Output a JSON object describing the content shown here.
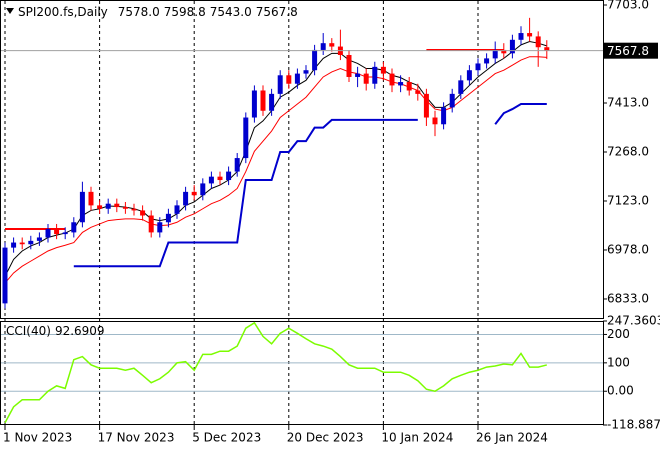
{
  "chart_data": [
    {
      "type": "candlestick",
      "title": "SPI200.fs,Daily",
      "ohlc_labels": [
        "7578.0",
        "7598.8",
        "7543.0",
        "7567.8"
      ],
      "categories": [
        "1 Nov 2023",
        null,
        null,
        null,
        null,
        null,
        null,
        null,
        null,
        null,
        null,
        "17 Nov 2023",
        null,
        null,
        null,
        null,
        null,
        null,
        null,
        null,
        null,
        null,
        "5 Dec 2023",
        null,
        null,
        null,
        null,
        null,
        null,
        null,
        null,
        null,
        null,
        "20 Dec 2023",
        null,
        null,
        null,
        null,
        null,
        null,
        null,
        null,
        null,
        null,
        "10 Jan 2024",
        null,
        null,
        null,
        null,
        null,
        null,
        null,
        null,
        null,
        null,
        "26 Jan 2024",
        null,
        null,
        null,
        null,
        null,
        null,
        null,
        null
      ],
      "open": [
        6820,
        6985,
        7000,
        6995,
        7005,
        7015,
        7040,
        7025,
        7030,
        7060,
        7150,
        7110,
        7100,
        7115,
        7105,
        7100,
        7095,
        7080,
        7030,
        7060,
        7085,
        7110,
        7150,
        7140,
        7175,
        7195,
        7185,
        7210,
        7250,
        7370,
        7450,
        7390,
        7440,
        7495,
        7470,
        7500,
        7510,
        7570,
        7590,
        7580,
        7555,
        7490,
        7500,
        7470,
        7520,
        7500,
        7465,
        7475,
        7450,
        7440,
        7370,
        7350,
        7400,
        7440,
        7480,
        7510,
        7530,
        7545,
        7570,
        7560,
        7600,
        7620,
        7610,
        7578
      ],
      "high": [
        7000,
        7015,
        7015,
        7020,
        7030,
        7055,
        7055,
        7045,
        7075,
        7180,
        7165,
        7125,
        7130,
        7130,
        7120,
        7115,
        7110,
        7095,
        7075,
        7100,
        7125,
        7165,
        7170,
        7190,
        7210,
        7210,
        7225,
        7265,
        7385,
        7465,
        7465,
        7455,
        7510,
        7510,
        7515,
        7525,
        7585,
        7620,
        7605,
        7630,
        7570,
        7520,
        7515,
        7535,
        7535,
        7515,
        7495,
        7490,
        7470,
        7455,
        7390,
        7415,
        7455,
        7495,
        7525,
        7545,
        7560,
        7595,
        7590,
        7615,
        7640,
        7665,
        7625,
        7598.8
      ],
      "low": [
        6805,
        6970,
        6980,
        6980,
        6990,
        7000,
        7010,
        7010,
        7015,
        7045,
        7095,
        7085,
        7085,
        7090,
        7085,
        7080,
        7065,
        7015,
        7015,
        7045,
        7070,
        7095,
        7125,
        7125,
        7160,
        7170,
        7170,
        7195,
        7235,
        7355,
        7375,
        7375,
        7425,
        7455,
        7455,
        7485,
        7495,
        7555,
        7565,
        7540,
        7475,
        7460,
        7450,
        7455,
        7480,
        7445,
        7445,
        7435,
        7420,
        7345,
        7315,
        7335,
        7385,
        7425,
        7465,
        7495,
        7515,
        7530,
        7545,
        7545,
        7585,
        7595,
        7520,
        7543
      ],
      "close": [
        6985,
        7000,
        6995,
        7005,
        7015,
        7040,
        7025,
        7030,
        7060,
        7150,
        7110,
        7100,
        7115,
        7105,
        7100,
        7095,
        7080,
        7030,
        7060,
        7085,
        7110,
        7150,
        7140,
        7175,
        7195,
        7185,
        7210,
        7250,
        7370,
        7450,
        7390,
        7440,
        7495,
        7470,
        7500,
        7510,
        7570,
        7590,
        7580,
        7555,
        7490,
        7500,
        7470,
        7520,
        7500,
        7465,
        7475,
        7450,
        7440,
        7370,
        7350,
        7400,
        7440,
        7480,
        7510,
        7530,
        7545,
        7570,
        7560,
        7600,
        7620,
        7610,
        7578,
        7567.8
      ],
      "up_color": "#0000cd",
      "down_color": "#ff0000",
      "series": [
        {
          "color": "#000000",
          "line_width": 1,
          "values": [
            6900,
            6950,
            6975,
            6990,
            7000,
            7015,
            7022,
            7028,
            7040,
            7080,
            7095,
            7100,
            7108,
            7107,
            7105,
            7100,
            7092,
            7070,
            7065,
            7070,
            7085,
            7110,
            7120,
            7140,
            7160,
            7170,
            7185,
            7210,
            7270,
            7340,
            7360,
            7390,
            7430,
            7445,
            7465,
            7480,
            7515,
            7545,
            7560,
            7560,
            7540,
            7530,
            7515,
            7515,
            7510,
            7495,
            7488,
            7475,
            7465,
            7430,
            7400,
            7400,
            7415,
            7440,
            7465,
            7490,
            7510,
            7530,
            7545,
            7565,
            7585,
            7595,
            7590,
            7582
          ]
        },
        {
          "color": "#ff0000",
          "line_width": 1,
          "values": [
            6880,
            6910,
            6930,
            6945,
            6960,
            6975,
            6985,
            6992,
            7000,
            7030,
            7045,
            7055,
            7065,
            7068,
            7070,
            7070,
            7068,
            7055,
            7050,
            7052,
            7060,
            7075,
            7085,
            7100,
            7115,
            7125,
            7140,
            7160,
            7210,
            7270,
            7300,
            7330,
            7370,
            7390,
            7410,
            7430,
            7460,
            7490,
            7505,
            7515,
            7505,
            7500,
            7490,
            7490,
            7485,
            7475,
            7470,
            7460,
            7450,
            7420,
            7395,
            7390,
            7400,
            7420,
            7440,
            7460,
            7480,
            7500,
            7510,
            7525,
            7540,
            7550,
            7550,
            7548
          ]
        },
        {
          "color": "#0000cd",
          "line_width": 2,
          "values": [
            null,
            null,
            null,
            null,
            null,
            null,
            null,
            null,
            6930,
            6930,
            6930,
            6930,
            6930,
            6930,
            6930,
            6930,
            6930,
            6930,
            6930,
            7000,
            7000,
            7000,
            7000,
            7000,
            7000,
            7000,
            7000,
            7000,
            7185,
            7185,
            7185,
            7185,
            7268,
            7268,
            7300,
            7300,
            7340,
            7340,
            7363,
            7363,
            7363,
            7363,
            7363,
            7363,
            7363,
            7363,
            7363,
            7363,
            7363,
            null,
            null,
            null,
            null,
            null,
            null,
            null,
            null,
            7350,
            7383,
            7395,
            7410,
            7410,
            7410,
            7410
          ]
        },
        {
          "color": "#ff0000",
          "line_width": 2,
          "values": [
            7040,
            7040,
            7040,
            7040,
            7040,
            7040,
            7040,
            7040,
            null,
            null,
            null,
            null,
            null,
            null,
            null,
            null,
            null,
            null,
            null,
            null,
            null,
            null,
            null,
            null,
            null,
            null,
            null,
            null,
            null,
            null,
            null,
            null,
            null,
            null,
            null,
            null,
            null,
            null,
            null,
            null,
            null,
            null,
            null,
            null,
            null,
            null,
            null,
            null,
            null,
            7570,
            7570,
            7570,
            7570,
            7570,
            7570,
            7570,
            7570,
            7570,
            7570,
            null,
            null,
            null,
            null,
            null
          ]
        }
      ],
      "ylim": [
        6776.7,
        7717.8
      ],
      "yticks": [
        {
          "value": 7703,
          "label": "7703.0"
        },
        {
          "value": 7413,
          "label": "7413.0"
        },
        {
          "value": 7268,
          "label": "7268.0"
        },
        {
          "value": 7123,
          "label": "7123.0"
        },
        {
          "value": 6978,
          "label": "6978.0"
        },
        {
          "value": 6833,
          "label": "6833.0"
        }
      ]
    },
    {
      "type": "line",
      "title": "CCI(40)",
      "series": [
        {
          "color": "#7cfc00",
          "values": [
            -111,
            -55,
            -30,
            -30,
            -30,
            0,
            19,
            10,
            111,
            122,
            93,
            81,
            81,
            81,
            74,
            81,
            56,
            30,
            44,
            67,
            100,
            104,
            74,
            130,
            130,
            141,
            141,
            159,
            222,
            241,
            193,
            167,
            204,
            222,
            204,
            185,
            167,
            159,
            148,
            122,
            93,
            81,
            81,
            81,
            67,
            67,
            67,
            56,
            37,
            7,
            0,
            19,
            44,
            56,
            67,
            74,
            85,
            89,
            96,
            93,
            133,
            85,
            85,
            92.6909
          ]
        }
      ],
      "ylim": [
        -118.8876,
        247.3603
      ],
      "yticks": [
        247.3603,
        200,
        100,
        {
          "value": 0,
          "label": "0.00"
        },
        -118.8876
      ]
    }
  ]
}
